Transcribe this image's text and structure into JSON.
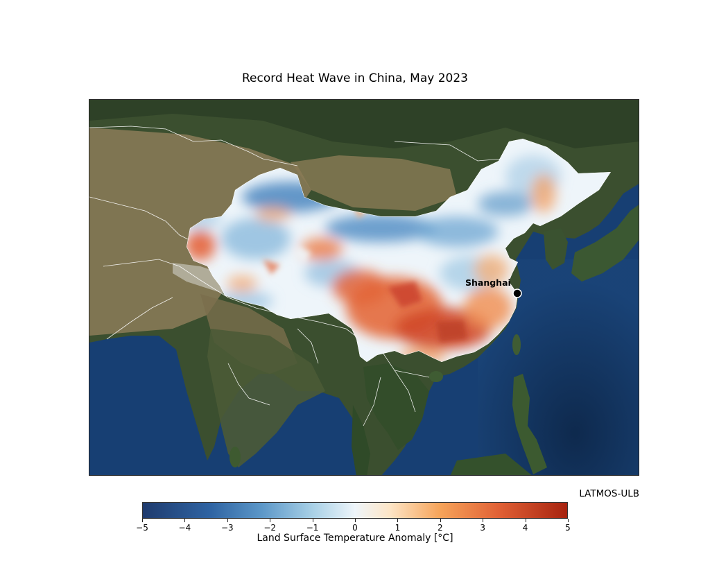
{
  "title": "Record Heat Wave in China, May 2023",
  "credit": "LATMOS-ULB",
  "map": {
    "basemap": "satellite imagery",
    "city": {
      "name": "Shanghai",
      "marker": "black circle with white outline"
    },
    "overlay": "land surface temperature anomaly over China",
    "colors": {
      "ocean": "#153b6d",
      "land_green": "#2e4a2a",
      "land_desert": "#8a7a5a",
      "borders": "#ffffff"
    }
  },
  "colorbar": {
    "label": "Land Surface Temperature Anomaly [°C]",
    "ticks": [
      "−5",
      "−4",
      "−3",
      "−2",
      "−1",
      "0",
      "1",
      "2",
      "3",
      "4",
      "5"
    ],
    "min": -5,
    "max": 5,
    "colors": [
      "#1f3b6e",
      "#2f64a3",
      "#5c97c8",
      "#a8d0e6",
      "#eef5fa",
      "#fde6c8",
      "#f6a45a",
      "#e06035",
      "#a7230f"
    ]
  }
}
